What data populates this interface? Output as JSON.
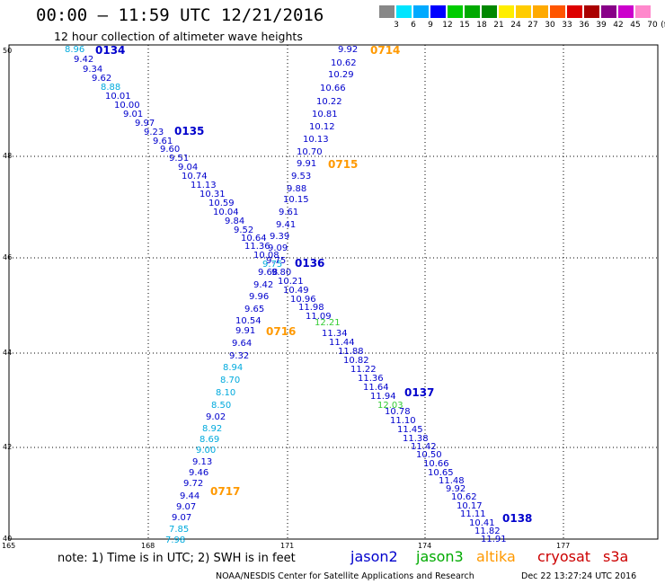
{
  "header": {
    "title": "00:00 – 11:59 UTC 12/21/2016",
    "subtitle": "12 hour collection of altimeter wave heights"
  },
  "colorbar": {
    "unit": "(ft)",
    "labels": [
      "3",
      "6",
      "9",
      "12",
      "15",
      "18",
      "21",
      "24",
      "27",
      "30",
      "33",
      "36",
      "39",
      "42",
      "45",
      "70"
    ],
    "colors": [
      "#888888",
      "#00e5ff",
      "#00aaff",
      "#0000ff",
      "#00cc00",
      "#00aa00",
      "#008800",
      "#ffee00",
      "#ffcc00",
      "#ffaa00",
      "#ff5500",
      "#dd0000",
      "#aa0000",
      "#880088",
      "#cc00cc",
      "#ff88cc"
    ]
  },
  "axes": {
    "lat_labels": [
      "50",
      "48",
      "46",
      "44",
      "42",
      "40"
    ],
    "lon_labels": [
      "165",
      "168",
      "171",
      "174",
      "177"
    ]
  },
  "observations": [
    {
      "v": "8.96",
      "c": "#00aadd"
    },
    {
      "v": "9.42",
      "c": "#0000cc"
    },
    {
      "v": "9.34",
      "c": "#0000cc"
    },
    {
      "v": "9.62",
      "c": "#0000cc"
    },
    {
      "v": "8.88",
      "c": "#00aadd"
    },
    {
      "v": "10.01",
      "c": "#0000cc"
    },
    {
      "v": "10.00",
      "c": "#0000cc"
    },
    {
      "v": "9.01",
      "c": "#0000cc"
    },
    {
      "v": "9.97",
      "c": "#0000cc"
    },
    {
      "v": "9.23",
      "c": "#0000cc"
    },
    {
      "v": "9.61",
      "c": "#0000cc"
    },
    {
      "v": "9.60",
      "c": "#0000cc"
    },
    {
      "v": "9.51",
      "c": "#0000cc"
    },
    {
      "v": "9.04",
      "c": "#0000cc"
    },
    {
      "v": "10.74",
      "c": "#0000cc"
    },
    {
      "v": "11.13",
      "c": "#0000cc"
    },
    {
      "v": "10.31",
      "c": "#0000cc"
    },
    {
      "v": "10.59",
      "c": "#0000cc"
    },
    {
      "v": "10.04",
      "c": "#0000cc"
    },
    {
      "v": "9.84",
      "c": "#0000cc"
    },
    {
      "v": "9.52",
      "c": "#0000cc"
    },
    {
      "v": "10.64",
      "c": "#0000cc"
    },
    {
      "v": "11.36",
      "c": "#0000cc"
    },
    {
      "v": "10.08",
      "c": "#0000cc"
    },
    {
      "v": "9.75",
      "c": "#00aadd"
    },
    {
      "v": "9.80",
      "c": "#0000cc"
    },
    {
      "v": "10.21",
      "c": "#0000cc"
    },
    {
      "v": "10.49",
      "c": "#0000cc"
    },
    {
      "v": "10.96",
      "c": "#0000cc"
    },
    {
      "v": "11.98",
      "c": "#0000cc"
    },
    {
      "v": "11.09",
      "c": "#0000cc"
    },
    {
      "v": "12.21",
      "c": "#33cc33"
    },
    {
      "v": "11.34",
      "c": "#0000cc"
    },
    {
      "v": "11.44",
      "c": "#0000cc"
    },
    {
      "v": "11.88",
      "c": "#0000cc"
    },
    {
      "v": "10.82",
      "c": "#0000cc"
    },
    {
      "v": "11.22",
      "c": "#0000cc"
    },
    {
      "v": "11.36",
      "c": "#0000cc"
    },
    {
      "v": "11.64",
      "c": "#0000cc"
    },
    {
      "v": "11.94",
      "c": "#0000cc"
    },
    {
      "v": "12.03",
      "c": "#33cc33"
    },
    {
      "v": "10.78",
      "c": "#0000cc"
    },
    {
      "v": "11.10",
      "c": "#0000cc"
    },
    {
      "v": "11.45",
      "c": "#0000cc"
    },
    {
      "v": "11.38",
      "c": "#0000cc"
    },
    {
      "v": "11.42",
      "c": "#0000cc"
    },
    {
      "v": "10.50",
      "c": "#0000cc"
    },
    {
      "v": "10.66",
      "c": "#0000cc"
    },
    {
      "v": "10.65",
      "c": "#0000cc"
    },
    {
      "v": "11.48",
      "c": "#0000cc"
    },
    {
      "v": "9.92",
      "c": "#0000cc"
    },
    {
      "v": "10.62",
      "c": "#0000cc"
    },
    {
      "v": "10.17",
      "c": "#0000cc"
    },
    {
      "v": "11.11",
      "c": "#0000cc"
    },
    {
      "v": "10.41",
      "c": "#0000cc"
    },
    {
      "v": "11.82",
      "c": "#0000cc"
    },
    {
      "v": "11.91",
      "c": "#0000cc"
    },
    {
      "v": "9.92",
      "c": "#0000cc"
    },
    {
      "v": "10.62",
      "c": "#0000cc"
    },
    {
      "v": "10.29",
      "c": "#0000cc"
    },
    {
      "v": "10.66",
      "c": "#0000cc"
    },
    {
      "v": "10.22",
      "c": "#0000cc"
    },
    {
      "v": "10.81",
      "c": "#0000cc"
    },
    {
      "v": "10.12",
      "c": "#0000cc"
    },
    {
      "v": "10.13",
      "c": "#0000cc"
    },
    {
      "v": "10.70",
      "c": "#0000cc"
    },
    {
      "v": "9.91",
      "c": "#0000cc"
    },
    {
      "v": "9.53",
      "c": "#0000cc"
    },
    {
      "v": "9.88",
      "c": "#0000cc"
    },
    {
      "v": "10.15",
      "c": "#0000cc"
    },
    {
      "v": "9.61",
      "c": "#0000cc"
    },
    {
      "v": "9.41",
      "c": "#0000cc"
    },
    {
      "v": "9.39",
      "c": "#0000cc"
    },
    {
      "v": "9.09",
      "c": "#0000cc"
    },
    {
      "v": "9.75",
      "c": "#0000cc"
    },
    {
      "v": "9.68",
      "c": "#0000cc"
    },
    {
      "v": "9.42",
      "c": "#0000cc"
    },
    {
      "v": "9.96",
      "c": "#0000cc"
    },
    {
      "v": "9.65",
      "c": "#0000cc"
    },
    {
      "v": "10.54",
      "c": "#0000cc"
    },
    {
      "v": "9.91",
      "c": "#0000cc"
    },
    {
      "v": "9.64",
      "c": "#0000cc"
    },
    {
      "v": "9.32",
      "c": "#0000cc"
    },
    {
      "v": "8.94",
      "c": "#00aadd"
    },
    {
      "v": "8.70",
      "c": "#00aadd"
    },
    {
      "v": "8.10",
      "c": "#00aadd"
    },
    {
      "v": "8.50",
      "c": "#00aadd"
    },
    {
      "v": "9.02",
      "c": "#0000cc"
    },
    {
      "v": "8.92",
      "c": "#00aadd"
    },
    {
      "v": "8.69",
      "c": "#00aadd"
    },
    {
      "v": "9.00",
      "c": "#00aadd"
    },
    {
      "v": "9.13",
      "c": "#0000cc"
    },
    {
      "v": "9.46",
      "c": "#0000cc"
    },
    {
      "v": "9.72",
      "c": "#0000cc"
    },
    {
      "v": "9.44",
      "c": "#0000cc"
    },
    {
      "v": "9.07",
      "c": "#0000cc"
    },
    {
      "v": "9.07",
      "c": "#0000cc"
    },
    {
      "v": "7.85",
      "c": "#00aadd"
    },
    {
      "v": "7.98",
      "c": "#00aadd"
    }
  ],
  "passes": [
    {
      "id": "0134",
      "c": "#0000cc"
    },
    {
      "id": "0135",
      "c": "#0000cc"
    },
    {
      "id": "0136",
      "c": "#0000cc"
    },
    {
      "id": "0137",
      "c": "#0000cc"
    },
    {
      "id": "0138",
      "c": "#0000cc"
    },
    {
      "id": "0714",
      "c": "#ff9900"
    },
    {
      "id": "0715",
      "c": "#ff9900"
    },
    {
      "id": "0716",
      "c": "#ff9900"
    },
    {
      "id": "0717",
      "c": "#ff9900"
    }
  ],
  "footer": {
    "note": "note: 1) Time is in UTC; 2) SWH is in feet",
    "legend": [
      {
        "label": "jason2",
        "color": "#0000cc"
      },
      {
        "label": "jason3",
        "color": "#00aa00"
      },
      {
        "label": "altika",
        "color": "#ff9900"
      },
      {
        "label": "cryosat",
        "color": "#cc0000"
      },
      {
        "label": "s3a",
        "color": "#cc0000"
      }
    ],
    "credit": "NOAA/NESDIS Center for Satellite Applications and Research",
    "timestamp": "Dec 22 13:27:24 UTC 2016"
  }
}
